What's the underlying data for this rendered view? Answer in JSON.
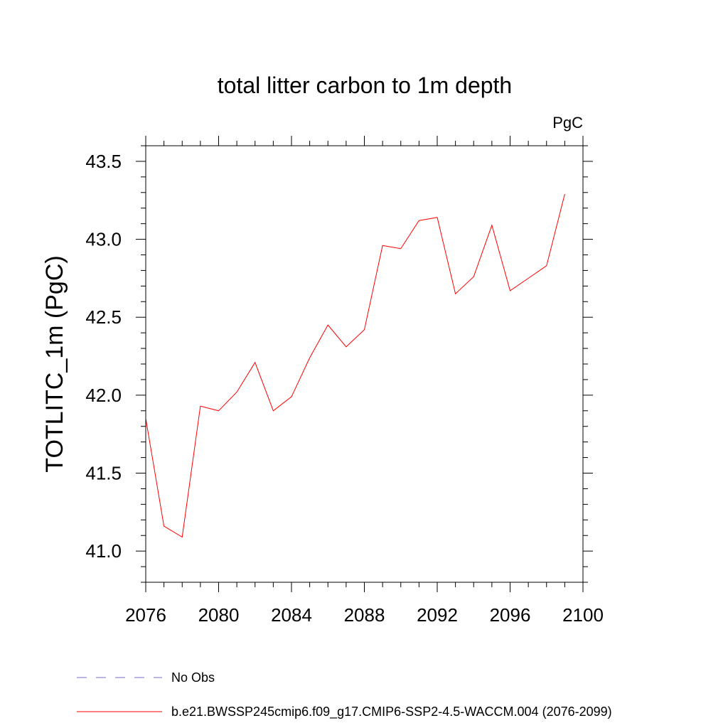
{
  "chart_data": {
    "type": "line",
    "title": "total litter carbon to 1m depth",
    "units_label": "PgC",
    "xlabel": "",
    "ylabel": "TOTLITC_1m  (PgC)",
    "xlim": [
      2076,
      2100
    ],
    "ylim": [
      40.8,
      43.6
    ],
    "x_ticks": [
      2076,
      2080,
      2084,
      2088,
      2092,
      2096,
      2100
    ],
    "x_tick_labels": [
      "2076",
      "2080",
      "2084",
      "2088",
      "2092",
      "2096",
      "2100"
    ],
    "y_ticks": [
      41.0,
      41.5,
      42.0,
      42.5,
      43.0,
      43.5
    ],
    "y_tick_labels": [
      "41.0",
      "41.5",
      "42.0",
      "42.5",
      "43.0",
      "43.5"
    ],
    "grid": false,
    "series": [
      {
        "name": "b.e21.BWSSP245cmip6.f09_g17.CMIP6-SSP2-4.5-WACCM.004 (2076-2099)",
        "color": "#ff0000",
        "x": [
          2076,
          2077,
          2078,
          2079,
          2080,
          2081,
          2082,
          2083,
          2084,
          2085,
          2086,
          2087,
          2088,
          2089,
          2090,
          2091,
          2092,
          2093,
          2094,
          2095,
          2096,
          2097,
          2098,
          2099
        ],
        "values": [
          41.85,
          41.16,
          41.09,
          41.93,
          41.9,
          42.02,
          42.21,
          41.9,
          41.99,
          42.24,
          42.45,
          42.31,
          42.42,
          42.96,
          42.94,
          43.12,
          43.14,
          42.65,
          42.76,
          43.09,
          42.67,
          42.75,
          42.83,
          43.29
        ]
      }
    ],
    "legend": [
      {
        "label": "No Obs",
        "color": "#7b68c8",
        "style": "dashed"
      },
      {
        "label": "b.e21.BWSSP245cmip6.f09_g17.CMIP6-SSP2-4.5-WACCM.004 (2076-2099)",
        "color": "#ff0000",
        "style": "solid"
      }
    ],
    "legend_placement": "bottom-left"
  }
}
